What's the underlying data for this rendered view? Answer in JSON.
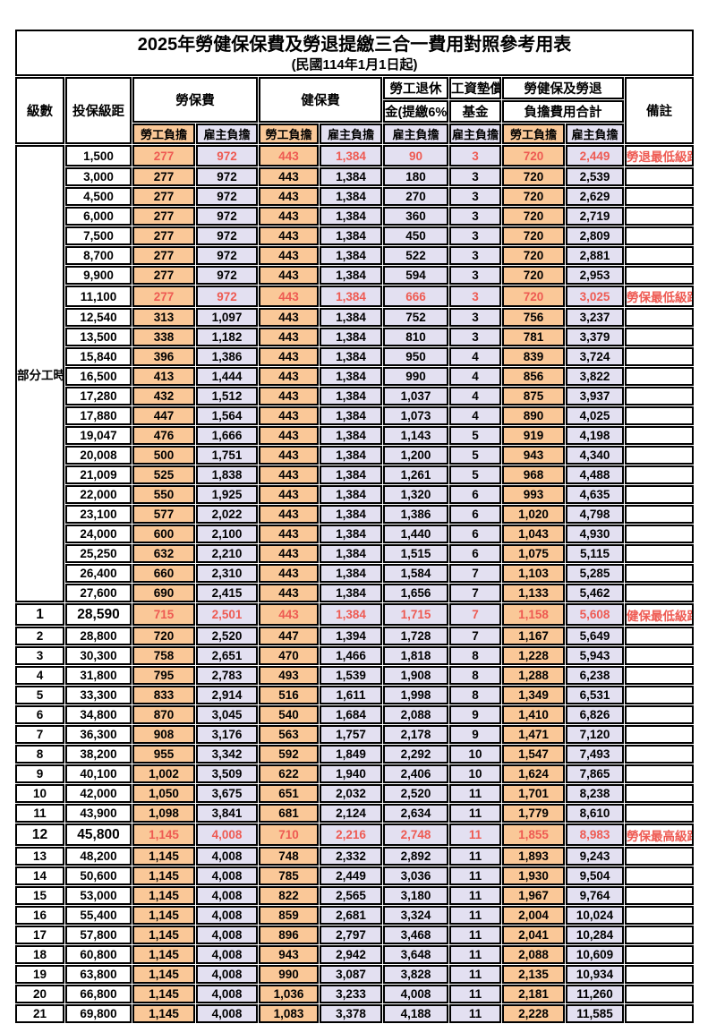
{
  "title": "2025年勞健保保費及勞退提繳三合一費用對照參考用表",
  "subtitle": "(民國114年1月1日起)",
  "colors": {
    "employee_burden_bg": "#fac898",
    "employer_burden_bg": "#e3e0f1",
    "highlight_red": "#ee5a52",
    "border": "#000000"
  },
  "header": {
    "level": "級數",
    "bracket": "投保級距",
    "labor_insurance": "勞保費",
    "health_insurance": "健保費",
    "pension_line1": "勞工退休",
    "pension_line2": "金(提繳6%)",
    "wage_fund_line1": "工資墊償",
    "wage_fund_line2": "基金",
    "total_line1": "勞健保及勞退",
    "total_line2": "負擔費用合計",
    "employee_burden": "勞工負擔",
    "employer_burden": "雇主負擔",
    "remarks": "備註"
  },
  "part_time_label": "部分工時",
  "part_time_rowspan": 23,
  "column_kinds": [
    "emp",
    "er",
    "emp",
    "er",
    "er",
    "er",
    "emp",
    "er"
  ],
  "column_names": [
    "labor-employee-cell",
    "labor-employer-cell",
    "health-employee-cell",
    "health-employer-cell",
    "pension-employer-cell",
    "wage-fund-employer-cell",
    "total-employee-cell",
    "total-employer-cell"
  ],
  "rows": [
    {
      "level": "",
      "bracket": "1,500",
      "values": [
        "277",
        "972",
        "443",
        "1,384",
        "90",
        "3",
        "720",
        "2,449"
      ],
      "note": "勞退最低級距",
      "red": true
    },
    {
      "level": "",
      "bracket": "3,000",
      "values": [
        "277",
        "972",
        "443",
        "1,384",
        "180",
        "3",
        "720",
        "2,539"
      ],
      "note": ""
    },
    {
      "level": "",
      "bracket": "4,500",
      "values": [
        "277",
        "972",
        "443",
        "1,384",
        "270",
        "3",
        "720",
        "2,629"
      ],
      "note": ""
    },
    {
      "level": "",
      "bracket": "6,000",
      "values": [
        "277",
        "972",
        "443",
        "1,384",
        "360",
        "3",
        "720",
        "2,719"
      ],
      "note": ""
    },
    {
      "level": "",
      "bracket": "7,500",
      "values": [
        "277",
        "972",
        "443",
        "1,384",
        "450",
        "3",
        "720",
        "2,809"
      ],
      "note": ""
    },
    {
      "level": "",
      "bracket": "8,700",
      "values": [
        "277",
        "972",
        "443",
        "1,384",
        "522",
        "3",
        "720",
        "2,881"
      ],
      "note": ""
    },
    {
      "level": "",
      "bracket": "9,900",
      "values": [
        "277",
        "972",
        "443",
        "1,384",
        "594",
        "3",
        "720",
        "2,953"
      ],
      "note": ""
    },
    {
      "level": "",
      "bracket": "11,100",
      "values": [
        "277",
        "972",
        "443",
        "1,384",
        "666",
        "3",
        "720",
        "3,025"
      ],
      "note": "勞保最低級距",
      "red": true
    },
    {
      "level": "",
      "bracket": "12,540",
      "values": [
        "313",
        "1,097",
        "443",
        "1,384",
        "752",
        "3",
        "756",
        "3,237"
      ],
      "note": ""
    },
    {
      "level": "",
      "bracket": "13,500",
      "values": [
        "338",
        "1,182",
        "443",
        "1,384",
        "810",
        "3",
        "781",
        "3,379"
      ],
      "note": ""
    },
    {
      "level": "",
      "bracket": "15,840",
      "values": [
        "396",
        "1,386",
        "443",
        "1,384",
        "950",
        "4",
        "839",
        "3,724"
      ],
      "note": ""
    },
    {
      "level": "",
      "bracket": "16,500",
      "values": [
        "413",
        "1,444",
        "443",
        "1,384",
        "990",
        "4",
        "856",
        "3,822"
      ],
      "note": ""
    },
    {
      "level": "",
      "bracket": "17,280",
      "values": [
        "432",
        "1,512",
        "443",
        "1,384",
        "1,037",
        "4",
        "875",
        "3,937"
      ],
      "note": ""
    },
    {
      "level": "",
      "bracket": "17,880",
      "values": [
        "447",
        "1,564",
        "443",
        "1,384",
        "1,073",
        "4",
        "890",
        "4,025"
      ],
      "note": ""
    },
    {
      "level": "",
      "bracket": "19,047",
      "values": [
        "476",
        "1,666",
        "443",
        "1,384",
        "1,143",
        "5",
        "919",
        "4,198"
      ],
      "note": ""
    },
    {
      "level": "",
      "bracket": "20,008",
      "values": [
        "500",
        "1,751",
        "443",
        "1,384",
        "1,200",
        "5",
        "943",
        "4,340"
      ],
      "note": ""
    },
    {
      "level": "",
      "bracket": "21,009",
      "values": [
        "525",
        "1,838",
        "443",
        "1,384",
        "1,261",
        "5",
        "968",
        "4,488"
      ],
      "note": ""
    },
    {
      "level": "",
      "bracket": "22,000",
      "values": [
        "550",
        "1,925",
        "443",
        "1,384",
        "1,320",
        "6",
        "993",
        "4,635"
      ],
      "note": ""
    },
    {
      "level": "",
      "bracket": "23,100",
      "values": [
        "577",
        "2,022",
        "443",
        "1,384",
        "1,386",
        "6",
        "1,020",
        "4,798"
      ],
      "note": ""
    },
    {
      "level": "",
      "bracket": "24,000",
      "values": [
        "600",
        "2,100",
        "443",
        "1,384",
        "1,440",
        "6",
        "1,043",
        "4,930"
      ],
      "note": ""
    },
    {
      "level": "",
      "bracket": "25,250",
      "values": [
        "632",
        "2,210",
        "443",
        "1,384",
        "1,515",
        "6",
        "1,075",
        "5,115"
      ],
      "note": ""
    },
    {
      "level": "",
      "bracket": "26,400",
      "values": [
        "660",
        "2,310",
        "443",
        "1,384",
        "1,584",
        "7",
        "1,103",
        "5,285"
      ],
      "note": ""
    },
    {
      "level": "",
      "bracket": "27,600",
      "values": [
        "690",
        "2,415",
        "443",
        "1,384",
        "1,656",
        "7",
        "1,133",
        "5,462"
      ],
      "note": ""
    },
    {
      "level": "1",
      "bracket": "28,590",
      "values": [
        "715",
        "2,501",
        "443",
        "1,384",
        "1,715",
        "7",
        "1,158",
        "5,608"
      ],
      "note": "健保最低級距",
      "red": true,
      "tall": true
    },
    {
      "level": "2",
      "bracket": "28,800",
      "values": [
        "720",
        "2,520",
        "447",
        "1,394",
        "1,728",
        "7",
        "1,167",
        "5,649"
      ],
      "note": ""
    },
    {
      "level": "3",
      "bracket": "30,300",
      "values": [
        "758",
        "2,651",
        "470",
        "1,466",
        "1,818",
        "8",
        "1,228",
        "5,943"
      ],
      "note": ""
    },
    {
      "level": "4",
      "bracket": "31,800",
      "values": [
        "795",
        "2,783",
        "493",
        "1,539",
        "1,908",
        "8",
        "1,288",
        "6,238"
      ],
      "note": ""
    },
    {
      "level": "5",
      "bracket": "33,300",
      "values": [
        "833",
        "2,914",
        "516",
        "1,611",
        "1,998",
        "8",
        "1,349",
        "6,531"
      ],
      "note": ""
    },
    {
      "level": "6",
      "bracket": "34,800",
      "values": [
        "870",
        "3,045",
        "540",
        "1,684",
        "2,088",
        "9",
        "1,410",
        "6,826"
      ],
      "note": ""
    },
    {
      "level": "7",
      "bracket": "36,300",
      "values": [
        "908",
        "3,176",
        "563",
        "1,757",
        "2,178",
        "9",
        "1,471",
        "7,120"
      ],
      "note": ""
    },
    {
      "level": "8",
      "bracket": "38,200",
      "values": [
        "955",
        "3,342",
        "592",
        "1,849",
        "2,292",
        "10",
        "1,547",
        "7,493"
      ],
      "note": ""
    },
    {
      "level": "9",
      "bracket": "40,100",
      "values": [
        "1,002",
        "3,509",
        "622",
        "1,940",
        "2,406",
        "10",
        "1,624",
        "7,865"
      ],
      "note": ""
    },
    {
      "level": "10",
      "bracket": "42,000",
      "values": [
        "1,050",
        "3,675",
        "651",
        "2,032",
        "2,520",
        "11",
        "1,701",
        "8,238"
      ],
      "note": ""
    },
    {
      "level": "11",
      "bracket": "43,900",
      "values": [
        "1,098",
        "3,841",
        "681",
        "2,124",
        "2,634",
        "11",
        "1,779",
        "8,610"
      ],
      "note": ""
    },
    {
      "level": "12",
      "bracket": "45,800",
      "values": [
        "1,145",
        "4,008",
        "710",
        "2,216",
        "2,748",
        "11",
        "1,855",
        "8,983"
      ],
      "note": "勞保最高級距",
      "red": true,
      "tall": true
    },
    {
      "level": "13",
      "bracket": "48,200",
      "values": [
        "1,145",
        "4,008",
        "748",
        "2,332",
        "2,892",
        "11",
        "1,893",
        "9,243"
      ],
      "note": ""
    },
    {
      "level": "14",
      "bracket": "50,600",
      "values": [
        "1,145",
        "4,008",
        "785",
        "2,449",
        "3,036",
        "11",
        "1,930",
        "9,504"
      ],
      "note": ""
    },
    {
      "level": "15",
      "bracket": "53,000",
      "values": [
        "1,145",
        "4,008",
        "822",
        "2,565",
        "3,180",
        "11",
        "1,967",
        "9,764"
      ],
      "note": ""
    },
    {
      "level": "16",
      "bracket": "55,400",
      "values": [
        "1,145",
        "4,008",
        "859",
        "2,681",
        "3,324",
        "11",
        "2,004",
        "10,024"
      ],
      "note": ""
    },
    {
      "level": "17",
      "bracket": "57,800",
      "values": [
        "1,145",
        "4,008",
        "896",
        "2,797",
        "3,468",
        "11",
        "2,041",
        "10,284"
      ],
      "note": ""
    },
    {
      "level": "18",
      "bracket": "60,800",
      "values": [
        "1,145",
        "4,008",
        "943",
        "2,942",
        "3,648",
        "11",
        "2,088",
        "10,609"
      ],
      "note": ""
    },
    {
      "level": "19",
      "bracket": "63,800",
      "values": [
        "1,145",
        "4,008",
        "990",
        "3,087",
        "3,828",
        "11",
        "2,135",
        "10,934"
      ],
      "note": ""
    },
    {
      "level": "20",
      "bracket": "66,800",
      "values": [
        "1,145",
        "4,008",
        "1,036",
        "3,233",
        "4,008",
        "11",
        "2,181",
        "11,260"
      ],
      "note": ""
    },
    {
      "level": "21",
      "bracket": "69,800",
      "values": [
        "1,145",
        "4,008",
        "1,083",
        "3,378",
        "4,188",
        "11",
        "2,228",
        "11,585"
      ],
      "note": ""
    }
  ]
}
